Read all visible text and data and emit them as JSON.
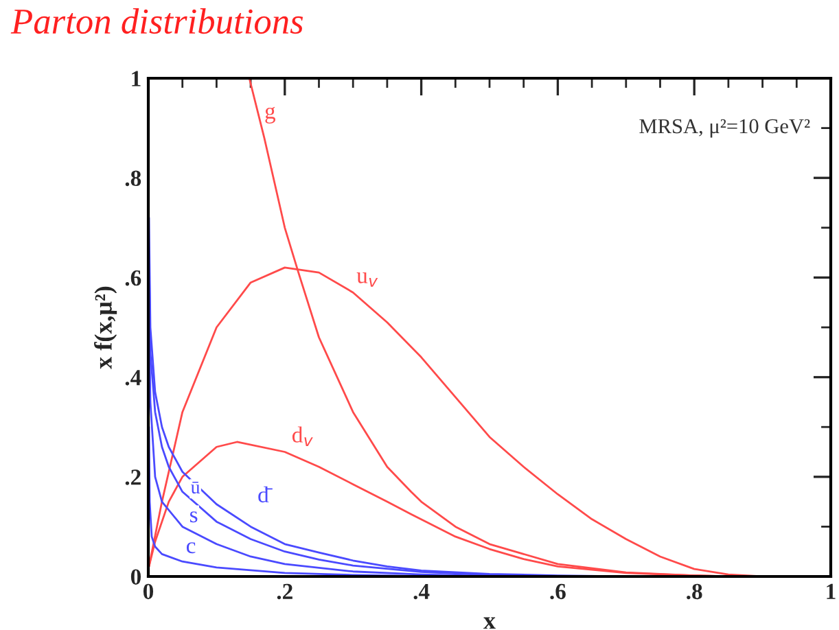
{
  "chart_data": {
    "type": "line",
    "title": "Parton distributions",
    "xlabel": "x",
    "ylabel": "x f(x,μ²)",
    "annotations": [
      "MRSA, μ²=10 GeV²"
    ],
    "xlim": [
      0,
      1
    ],
    "ylim": [
      0,
      1
    ],
    "xticks": [
      {
        "value": 0,
        "label": "0"
      },
      {
        "value": 0.2,
        "label": ".2"
      },
      {
        "value": 0.4,
        "label": ".4"
      },
      {
        "value": 0.6,
        "label": ".6"
      },
      {
        "value": 0.8,
        "label": ".8"
      },
      {
        "value": 1,
        "label": "1"
      }
    ],
    "yticks": [
      {
        "value": 0,
        "label": "0"
      },
      {
        "value": 0.2,
        "label": ".2"
      },
      {
        "value": 0.4,
        "label": ".4"
      },
      {
        "value": 0.6,
        "label": ".6"
      },
      {
        "value": 0.8,
        "label": ".8"
      },
      {
        "value": 1,
        "label": "1"
      }
    ],
    "grid": false,
    "legend": false,
    "line_style": "solid",
    "marker": "none",
    "series": [
      {
        "name": "g",
        "color": "#ff4a4a",
        "x": [
          0.148,
          0.17,
          0.2,
          0.22,
          0.25,
          0.3,
          0.35,
          0.385,
          0.4,
          0.45,
          0.5,
          0.6,
          0.7,
          0.8,
          0.85
        ],
        "values": [
          1.0,
          0.88,
          0.7,
          0.61,
          0.48,
          0.33,
          0.22,
          0.17,
          0.15,
          0.1,
          0.065,
          0.025,
          0.008,
          0.002,
          0.0
        ]
      },
      {
        "name": "u$_{v}$",
        "color": "#ff4a4a",
        "x": [
          0.001,
          0.02,
          0.05,
          0.1,
          0.15,
          0.2,
          0.25,
          0.3,
          0.35,
          0.4,
          0.45,
          0.5,
          0.55,
          0.6,
          0.65,
          0.7,
          0.75,
          0.8,
          0.85,
          0.9
        ],
        "values": [
          0.02,
          0.15,
          0.33,
          0.5,
          0.59,
          0.62,
          0.61,
          0.57,
          0.51,
          0.44,
          0.36,
          0.28,
          0.22,
          0.165,
          0.115,
          0.075,
          0.04,
          0.015,
          0.004,
          0.0
        ]
      },
      {
        "name": "d$_{v}$",
        "color": "#ff4a4a",
        "x": [
          0.001,
          0.01,
          0.03,
          0.05,
          0.1,
          0.13,
          0.2,
          0.25,
          0.3,
          0.35,
          0.385,
          0.45,
          0.5,
          0.55,
          0.6,
          0.7,
          0.8,
          0.85
        ],
        "values": [
          0.02,
          0.07,
          0.15,
          0.2,
          0.26,
          0.27,
          0.25,
          0.22,
          0.185,
          0.15,
          0.125,
          0.08,
          0.055,
          0.035,
          0.02,
          0.007,
          0.002,
          0.0
        ]
      },
      {
        "name": "d̄",
        "color": "#4a4aff",
        "x": [
          0.001,
          0.003,
          0.01,
          0.02,
          0.03,
          0.05,
          0.1,
          0.15,
          0.2,
          0.25,
          0.3,
          0.35,
          0.4,
          0.5,
          0.6,
          0.7,
          0.9
        ],
        "values": [
          0.72,
          0.5,
          0.37,
          0.3,
          0.26,
          0.21,
          0.145,
          0.1,
          0.065,
          0.048,
          0.032,
          0.02,
          0.012,
          0.005,
          0.002,
          0.0,
          0.0
        ]
      },
      {
        "name": "ū",
        "color": "#4a4aff",
        "x": [
          0.001,
          0.003,
          0.01,
          0.02,
          0.03,
          0.05,
          0.1,
          0.15,
          0.2,
          0.25,
          0.3,
          0.4,
          0.5,
          0.6,
          0.7,
          0.9
        ],
        "values": [
          0.65,
          0.45,
          0.33,
          0.26,
          0.22,
          0.17,
          0.11,
          0.075,
          0.05,
          0.034,
          0.022,
          0.009,
          0.003,
          0.001,
          0.0,
          0.0
        ]
      },
      {
        "name": "s",
        "color": "#4a4aff",
        "x": [
          0.001,
          0.003,
          0.01,
          0.02,
          0.05,
          0.1,
          0.15,
          0.2,
          0.3,
          0.4,
          0.5,
          0.6,
          0.9
        ],
        "values": [
          0.55,
          0.35,
          0.2,
          0.15,
          0.1,
          0.065,
          0.04,
          0.025,
          0.01,
          0.004,
          0.001,
          0.0,
          0.0
        ]
      },
      {
        "name": "c",
        "color": "#4a4aff",
        "x": [
          0.001,
          0.002,
          0.005,
          0.01,
          0.02,
          0.05,
          0.1,
          0.2,
          0.3,
          0.4,
          0.5,
          0.9
        ],
        "values": [
          0.3,
          0.15,
          0.08,
          0.06,
          0.045,
          0.03,
          0.018,
          0.007,
          0.003,
          0.001,
          0.0,
          0.0
        ]
      }
    ]
  }
}
